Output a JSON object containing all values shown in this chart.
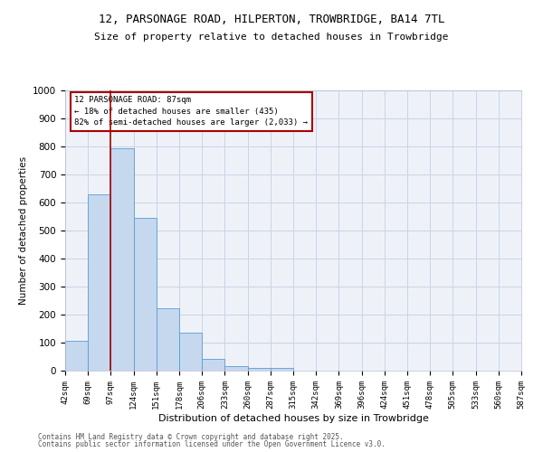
{
  "title_line1": "12, PARSONAGE ROAD, HILPERTON, TROWBRIDGE, BA14 7TL",
  "title_line2": "Size of property relative to detached houses in Trowbridge",
  "xlabel": "Distribution of detached houses by size in Trowbridge",
  "ylabel": "Number of detached properties",
  "bar_values": [
    107,
    630,
    795,
    545,
    222,
    135,
    42,
    16,
    10,
    10,
    0,
    0,
    0,
    0,
    0,
    0,
    0,
    0,
    0,
    0
  ],
  "categories": [
    "42sqm",
    "69sqm",
    "97sqm",
    "124sqm",
    "151sqm",
    "178sqm",
    "206sqm",
    "233sqm",
    "260sqm",
    "287sqm",
    "315sqm",
    "342sqm",
    "369sqm",
    "396sqm",
    "424sqm",
    "451sqm",
    "478sqm",
    "505sqm",
    "533sqm",
    "560sqm",
    "587sqm"
  ],
  "bar_color": "#c5d8ee",
  "bar_edge_color": "#5b9bd5",
  "vline_x_index": 2,
  "vline_color": "#aa0000",
  "annotation_text": "12 PARSONAGE ROAD: 87sqm\n← 18% of detached houses are smaller (435)\n82% of semi-detached houses are larger (2,033) →",
  "annotation_box_color": "#aa0000",
  "annotation_text_color": "#000000",
  "ylim": [
    0,
    1000
  ],
  "yticks": [
    0,
    100,
    200,
    300,
    400,
    500,
    600,
    700,
    800,
    900,
    1000
  ],
  "grid_color": "#c8d4e8",
  "background_color": "#eef2f8",
  "footer_line1": "Contains HM Land Registry data © Crown copyright and database right 2025.",
  "footer_line2": "Contains public sector information licensed under the Open Government Licence v3.0."
}
